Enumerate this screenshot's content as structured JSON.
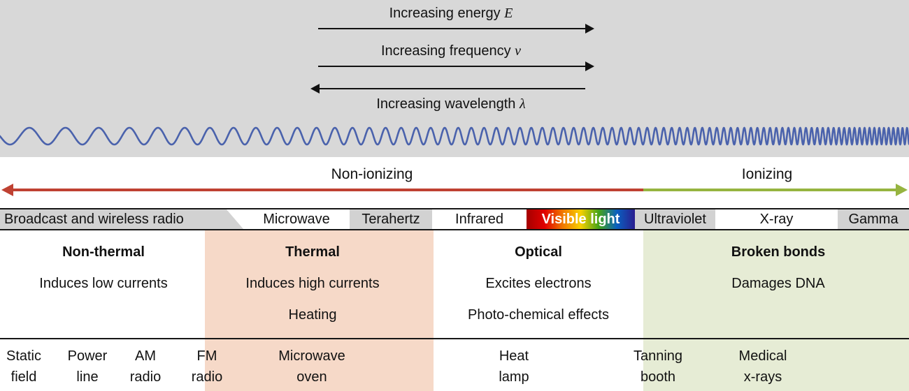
{
  "colors": {
    "banner_bg": "#d8d8d8",
    "wave_blue": "#4a62ac",
    "non_ionizing_arrow": "#bf4132",
    "ionizing_arrow": "#96b440",
    "thermal_bg": "#f6d9c8",
    "broken_bonds_bg": "#e6ecd5",
    "band_gray": "#d2d2d2"
  },
  "banner": {
    "energy_text": "Increasing energy ",
    "energy_var": "E",
    "frequency_text": "Increasing frequency ",
    "frequency_var": "ν",
    "wavelength_text": "Increasing wavelength ",
    "wavelength_var": "λ"
  },
  "ionization": {
    "non_ionizing": "Non-ionizing",
    "ionizing": "Ionizing"
  },
  "bands": [
    {
      "label": "Broadcast and wireless radio"
    },
    {
      "label": "Microwave"
    },
    {
      "label": "Terahertz"
    },
    {
      "label": "Infrared"
    },
    {
      "label": "Visible light"
    },
    {
      "label": "Ultraviolet"
    },
    {
      "label": "X-ray"
    },
    {
      "label": "Gamma"
    }
  ],
  "effects": [
    {
      "title": "Non-thermal",
      "line1": "Induces low currents",
      "line2": ""
    },
    {
      "title": "Thermal",
      "line1": "Induces high currents",
      "line2": "Heating"
    },
    {
      "title": "Optical",
      "line1": "Excites electrons",
      "line2": "Photo-chemical effects"
    },
    {
      "title": "Broken bonds",
      "line1": "Damages DNA",
      "line2": ""
    }
  ],
  "examples": [
    {
      "line1": "Static",
      "line2": "field"
    },
    {
      "line1": "Power",
      "line2": "line"
    },
    {
      "line1": "AM",
      "line2": "radio"
    },
    {
      "line1": "FM",
      "line2": "radio"
    },
    {
      "line1": "Microwave",
      "line2": "oven"
    },
    {
      "line1": "Heat",
      "line2": "lamp"
    },
    {
      "line1": "Tanning",
      "line2": "booth"
    },
    {
      "line1": "Medical",
      "line2": "x-rays"
    }
  ]
}
